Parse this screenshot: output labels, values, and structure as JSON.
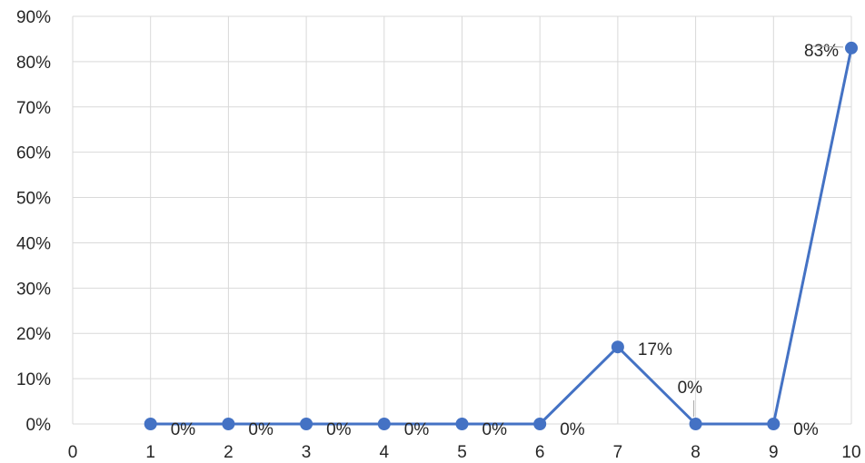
{
  "chart_data": {
    "type": "line",
    "title": "",
    "xlabel": "",
    "ylabel": "",
    "x": [
      1,
      2,
      3,
      4,
      5,
      6,
      7,
      8,
      9,
      10
    ],
    "series": [
      {
        "values": [
          0,
          0,
          0,
          0,
          0,
          0,
          17,
          0,
          0,
          83
        ],
        "data_labels": [
          "0%",
          "0%",
          "0%",
          "0%",
          "0%",
          "0%",
          "17%",
          "0%",
          "0%",
          "83%"
        ]
      }
    ],
    "xlim": [
      0,
      10
    ],
    "ylim": [
      0,
      90
    ],
    "x_ticks": [
      "0",
      "1",
      "2",
      "3",
      "4",
      "5",
      "6",
      "7",
      "8",
      "9",
      "10"
    ],
    "y_ticks": [
      "0%",
      "10%",
      "20%",
      "30%",
      "40%",
      "50%",
      "60%",
      "70%",
      "80%",
      "90%"
    ],
    "grid": true,
    "legend": "none",
    "colors": {
      "series": "#4472C4",
      "grid": "#D9D9D9",
      "axis": "#D9D9D9",
      "text": "#262626",
      "leader": "#A6A6A6"
    }
  }
}
